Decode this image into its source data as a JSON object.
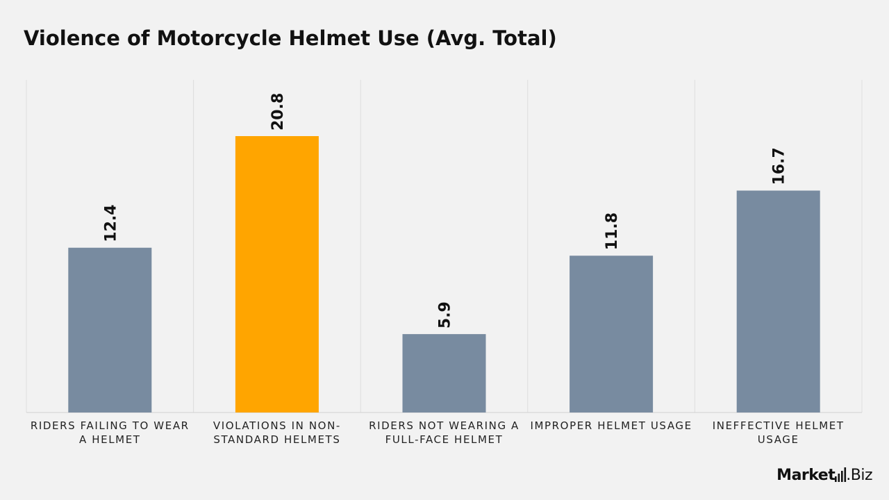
{
  "chart_data": {
    "type": "bar",
    "title": "Violence of Motorcycle Helmet Use (Avg. Total)",
    "xlabel": "",
    "ylabel": "",
    "ylim": [
      0,
      22.0
    ],
    "grid": "vertical separators between categories",
    "legend": "none",
    "categories": [
      "RIDERS FAILING TO WEAR A HELMET",
      "VIOLATIONS IN NON-STANDARD HELMETS",
      "RIDERS NOT WEARING A FULL-FACE HELMET",
      "IMPROPER HELMET USAGE",
      "INEFFECTIVE HELMET USAGE"
    ],
    "values": [
      12.4,
      20.8,
      5.9,
      11.8,
      16.7
    ],
    "value_labels": [
      "12.4",
      "20.8",
      "5.9",
      "11.8",
      "16.7"
    ],
    "highlight_index": 1,
    "colors": {
      "default_bar": "#788ba0",
      "highlight_bar": "#ffa500",
      "background": "#f2f2f2",
      "grid": "#dddddd"
    }
  },
  "branding": {
    "name": "Market",
    "tld": ".Biz",
    "icon": "bar-chart-icon"
  }
}
